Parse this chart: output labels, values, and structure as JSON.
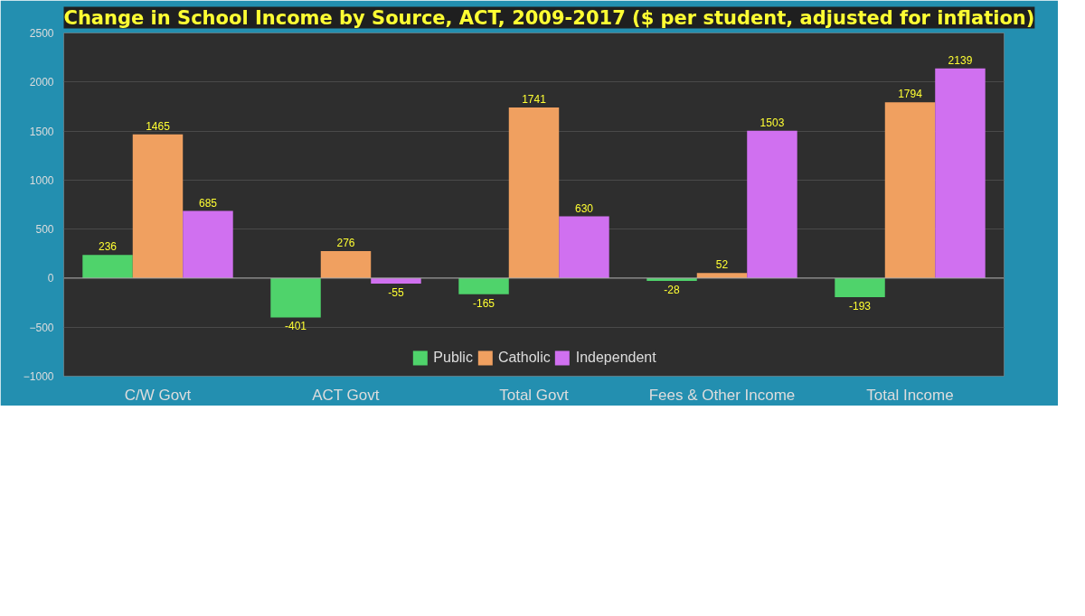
{
  "chart_data": {
    "type": "bar",
    "title": "Change in School Income by Source, ACT, 2009-2017 ($ per student, adjusted for inflation)",
    "categories": [
      "C/W Govt",
      "ACT Govt",
      "Total Govt",
      "Fees & Other Income",
      "Total Income"
    ],
    "series": [
      {
        "name": "Public",
        "color": "#4fd36b",
        "values": [
          236,
          -401,
          -165,
          -28,
          -193
        ]
      },
      {
        "name": "Catholic",
        "color": "#f0a060",
        "values": [
          1465,
          276,
          1741,
          52,
          1794
        ]
      },
      {
        "name": "Independent",
        "color": "#d070f0",
        "values": [
          685,
          -55,
          630,
          1503,
          2139
        ]
      }
    ],
    "ylim": [
      -1000,
      2500
    ],
    "yticks": [
      -1000,
      -500,
      0,
      500,
      1000,
      1500,
      2000,
      2500
    ],
    "grid": "y",
    "legend": "bottom",
    "data_labels": true
  }
}
